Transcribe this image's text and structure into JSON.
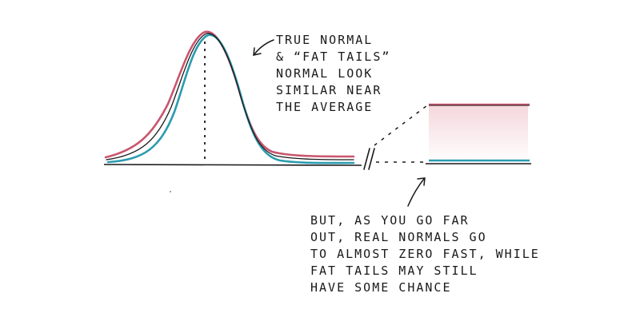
{
  "annotations": {
    "top_note": {
      "lines": [
        "True normal",
        "& “fat tails”",
        "normal look",
        "similar near",
        "the average"
      ]
    },
    "bottom_note": {
      "lines": [
        "But, as you go far",
        "out, real normals go",
        "to almost zero fast, while",
        "fat tails may still",
        "have some chance"
      ]
    }
  },
  "colors": {
    "ink": "#1a1a1a",
    "fat_tails": "#c9566e",
    "true_normal": "#2a9bb0",
    "fat_tails_shading": "#f3d3d8"
  }
}
